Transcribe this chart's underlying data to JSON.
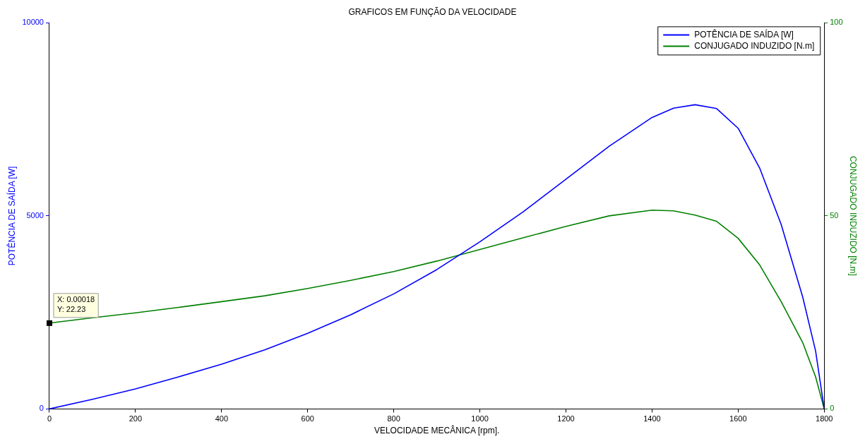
{
  "chart_data": {
    "type": "line",
    "title": "GRAFICOS EM FUNÇÃO DA VELOCIDADE",
    "xlabel": "VELOCIDADE MECÂNICA [rpm].",
    "ylabel": "POTÊNCIA DE SAÍDA [W]",
    "y2label": "CONJUGADO INDUZIDO [N.m]",
    "x": [
      0,
      100,
      200,
      300,
      400,
      500,
      600,
      700,
      800,
      900,
      1000,
      1100,
      1200,
      1300,
      1400,
      1450,
      1500,
      1550,
      1600,
      1650,
      1700,
      1750,
      1780,
      1800
    ],
    "series": [
      {
        "name": "POTÊNCIA DE SAÍDA [W]",
        "color": "#0000ff",
        "values": [
          0,
          250,
          520,
          830,
          1160,
          1530,
          1960,
          2440,
          2980,
          3610,
          4330,
          5100,
          5950,
          6800,
          7550,
          7790,
          7880,
          7780,
          7270,
          6240,
          4780,
          2900,
          1500,
          0
        ]
      },
      {
        "name": "CONJUGADO INDUZIDO [N.m]",
        "color": "#008000",
        "axis": "y2",
        "values": [
          22.23,
          23.6,
          24.9,
          26.3,
          27.8,
          29.3,
          31.2,
          33.3,
          35.6,
          38.3,
          41.3,
          44.3,
          47.3,
          50,
          51.5,
          51.3,
          50.2,
          48.6,
          44.2,
          37.3,
          27.8,
          17.2,
          8.3,
          0
        ]
      }
    ],
    "xlim": [
      0,
      1800
    ],
    "xticks": [
      0,
      200,
      400,
      600,
      800,
      1000,
      1200,
      1400,
      1600,
      1800
    ],
    "ylim": [
      0,
      10000
    ],
    "yticks": [
      0,
      5000,
      10000
    ],
    "y2lim": [
      0,
      100
    ],
    "y2ticks": [
      0,
      50,
      100
    ],
    "legend": "top right",
    "marker": "none",
    "line_style": "solid",
    "grid": false,
    "annotations": [
      "X: 0.00018\nY: 22.23"
    ]
  }
}
